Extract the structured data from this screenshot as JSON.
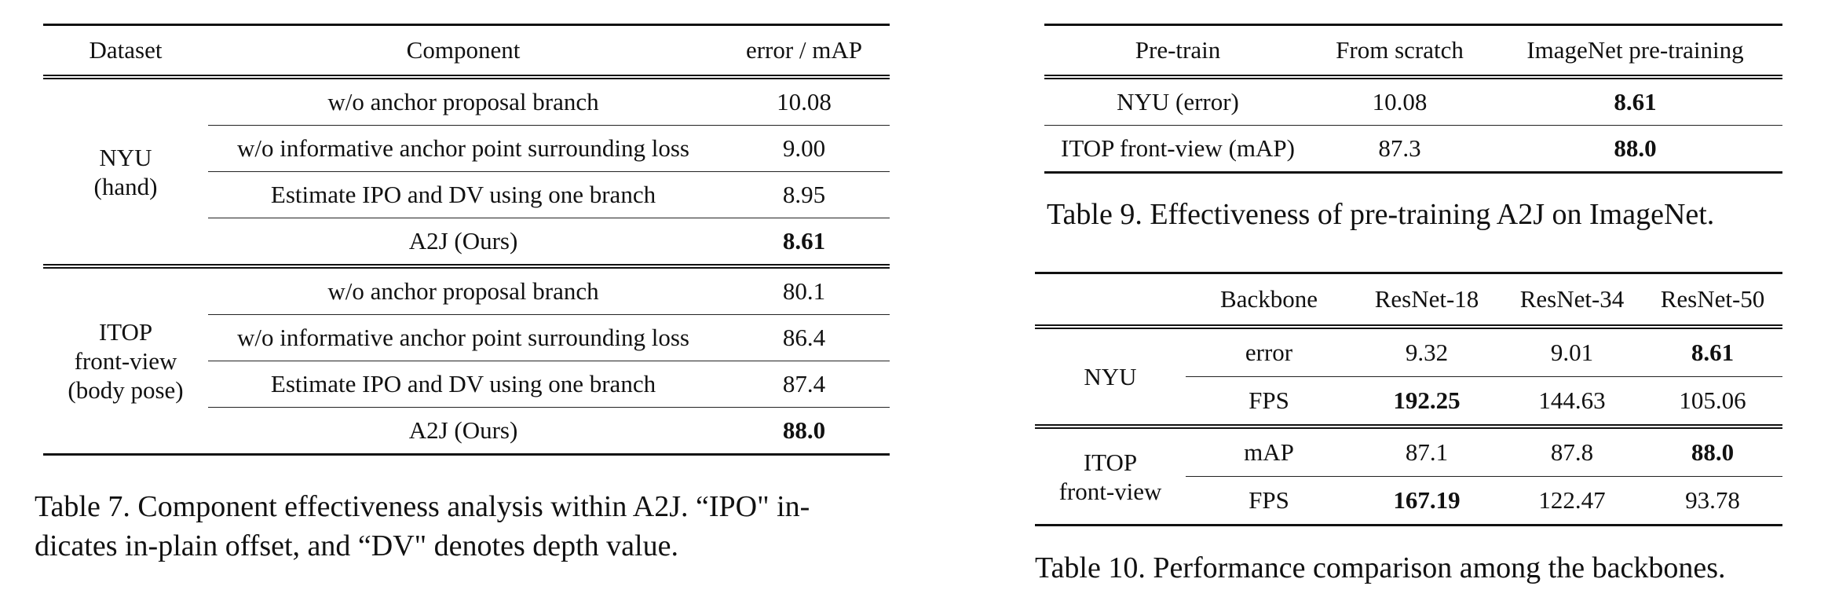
{
  "table7": {
    "headers": [
      "Dataset",
      "Component",
      "error / mAP"
    ],
    "groups": [
      {
        "dataset_lines": [
          "NYU",
          "(hand)"
        ],
        "rows": [
          {
            "component": "w/o anchor proposal branch",
            "value": "10.08"
          },
          {
            "component": "w/o informative anchor point surrounding loss",
            "value": "9.00"
          },
          {
            "component": "Estimate IPO and DV using one branch",
            "value": "8.95"
          },
          {
            "component": "A2J (Ours)",
            "value": "8.61"
          }
        ]
      },
      {
        "dataset_lines": [
          "ITOP",
          "front-view",
          "(body pose)"
        ],
        "rows": [
          {
            "component": "w/o anchor proposal branch",
            "value": "80.1"
          },
          {
            "component": "w/o informative anchor point surrounding loss",
            "value": "86.4"
          },
          {
            "component": "Estimate IPO and DV using one branch",
            "value": "87.4"
          },
          {
            "component": "A2J (Ours)",
            "value": "88.0"
          }
        ]
      }
    ],
    "caption_line1": "Table 7. Component effectiveness analysis within A2J. “IPO\" in-",
    "caption_line2": "dicates in-plain offset, and “DV\" denotes depth value."
  },
  "table9": {
    "headers": [
      "Pre-train",
      "From scratch",
      "ImageNet pre-training"
    ],
    "rows": [
      {
        "label": "NYU (error)",
        "scratch": "10.08",
        "imagenet": "8.61"
      },
      {
        "label": "ITOP front-view (mAP)",
        "scratch": "87.3",
        "imagenet": "88.0"
      }
    ],
    "caption": "Table 9. Effectiveness of pre-training A2J on ImageNet."
  },
  "table10": {
    "headers": [
      "",
      "Backbone",
      "ResNet-18",
      "ResNet-34",
      "ResNet-50"
    ],
    "groups": [
      {
        "dataset_lines": [
          "NYU"
        ],
        "rows": [
          {
            "metric": "error",
            "r18": "9.32",
            "r34": "9.01",
            "r50": "8.61"
          },
          {
            "metric": "FPS",
            "r18": "192.25",
            "r34": "144.63",
            "r50": "105.06"
          }
        ]
      },
      {
        "dataset_lines": [
          "ITOP",
          "front-view"
        ],
        "rows": [
          {
            "metric": "mAP",
            "r18": "87.1",
            "r34": "87.8",
            "r50": "88.0"
          },
          {
            "metric": "FPS",
            "r18": "167.19",
            "r34": "122.47",
            "r50": "93.78"
          }
        ]
      }
    ],
    "caption": "Table 10. Performance comparison among the backbones."
  }
}
